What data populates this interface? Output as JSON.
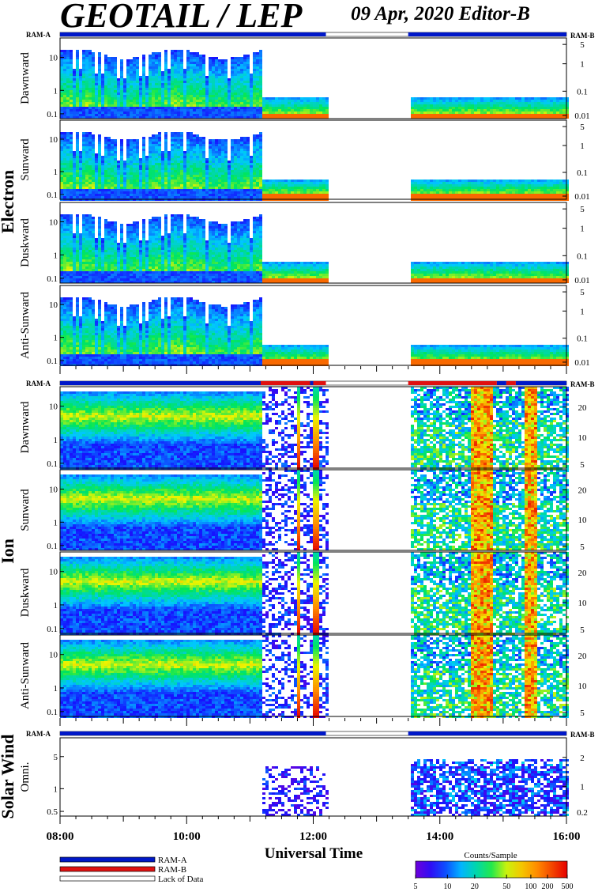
{
  "header": {
    "title": "GEOTAIL / LEP",
    "date_editor": "09 Apr, 2020   Editor-B"
  },
  "chart_data": {
    "type": "heatmap",
    "x_axis": {
      "label": "Universal Time",
      "ticks": [
        "08:00",
        "10:00",
        "12:00",
        "14:00",
        "16:00"
      ],
      "range_hours": [
        8,
        16
      ]
    },
    "mode_bar_labels": {
      "left": "RAM-A",
      "right": "RAM-B"
    },
    "mode_colors": {
      "RAM-A": "#0018c8",
      "RAM-B": "#e01010",
      "Lack of Data": "#ffffff"
    },
    "groups": [
      {
        "name": "Electron",
        "panels": [
          {
            "label": "Dawnward",
            "left_ticks": [
              "10",
              "1",
              "0.1"
            ],
            "right_ticks": [
              "5",
              "1",
              "0.1",
              "0.01"
            ]
          },
          {
            "label": "Sunward",
            "left_ticks": [
              "10",
              "1",
              "0.1"
            ],
            "right_ticks": [
              "5",
              "1",
              "0.1",
              "0.01"
            ]
          },
          {
            "label": "Duskward",
            "left_ticks": [
              "10",
              "1",
              "0.1"
            ],
            "right_ticks": [
              "5",
              "1",
              "0.1",
              "0.01"
            ]
          },
          {
            "label": "Anti-Sunward",
            "left_ticks": [
              "10",
              "1",
              "0.1"
            ],
            "right_ticks": [
              "5",
              "1",
              "0.1",
              "0.01"
            ]
          }
        ]
      },
      {
        "name": "Ion",
        "panels": [
          {
            "label": "Dawnward",
            "left_ticks": [
              "10",
              "1",
              "0.1"
            ],
            "right_ticks": [
              "20",
              "10",
              "5"
            ]
          },
          {
            "label": "Sunward",
            "left_ticks": [
              "10",
              "1",
              "0.1"
            ],
            "right_ticks": [
              "20",
              "10",
              "5"
            ]
          },
          {
            "label": "Duskward",
            "left_ticks": [
              "10",
              "1",
              "0.1"
            ],
            "right_ticks": [
              "20",
              "10",
              "5"
            ]
          },
          {
            "label": "Anti-Sunward",
            "left_ticks": [
              "10",
              "1",
              "0.1"
            ],
            "right_ticks": [
              "20",
              "10",
              "5"
            ]
          }
        ]
      },
      {
        "name": "Solar Wind",
        "panels": [
          {
            "label": "Omni.",
            "left_ticks": [
              "5",
              "1",
              "0.5"
            ],
            "right_ticks": [
              "2",
              "1",
              "0.2"
            ]
          }
        ]
      }
    ],
    "mode_intervals": {
      "electron": [
        {
          "mode": "RAM-A",
          "from": 8.0,
          "to": 12.2
        },
        {
          "mode": "Lack of Data",
          "from": 12.2,
          "to": 13.5
        },
        {
          "mode": "RAM-A",
          "from": 13.5,
          "to": 16.0
        }
      ],
      "ion": [
        {
          "mode": "RAM-A",
          "from": 8.0,
          "to": 11.17
        },
        {
          "mode": "RAM-B",
          "from": 11.17,
          "to": 11.95
        },
        {
          "mode": "RAM-A",
          "from": 11.95,
          "to": 12.0
        },
        {
          "mode": "RAM-B",
          "from": 12.0,
          "to": 12.2
        },
        {
          "mode": "Lack of Data",
          "from": 12.2,
          "to": 13.5
        },
        {
          "mode": "RAM-B",
          "from": 13.5,
          "to": 14.9
        },
        {
          "mode": "RAM-A",
          "from": 14.9,
          "to": 15.05
        },
        {
          "mode": "RAM-B",
          "from": 15.05,
          "to": 15.2
        },
        {
          "mode": "RAM-A",
          "from": 15.2,
          "to": 16.0
        }
      ],
      "solar_wind": [
        {
          "mode": "RAM-A",
          "from": 8.0,
          "to": 12.2
        },
        {
          "mode": "Lack of Data",
          "from": 12.2,
          "to": 13.5
        },
        {
          "mode": "RAM-A",
          "from": 13.5,
          "to": 16.0
        }
      ]
    },
    "data_gap_hours": [
      12.2,
      13.5
    ],
    "legend": {
      "items": [
        "RAM-A",
        "RAM-B",
        "Lack of Data"
      ],
      "colorbar_title": "Counts/Sample",
      "colorbar_ticks": [
        "5",
        "10",
        "20",
        "50",
        "100",
        "200",
        "500"
      ]
    }
  }
}
